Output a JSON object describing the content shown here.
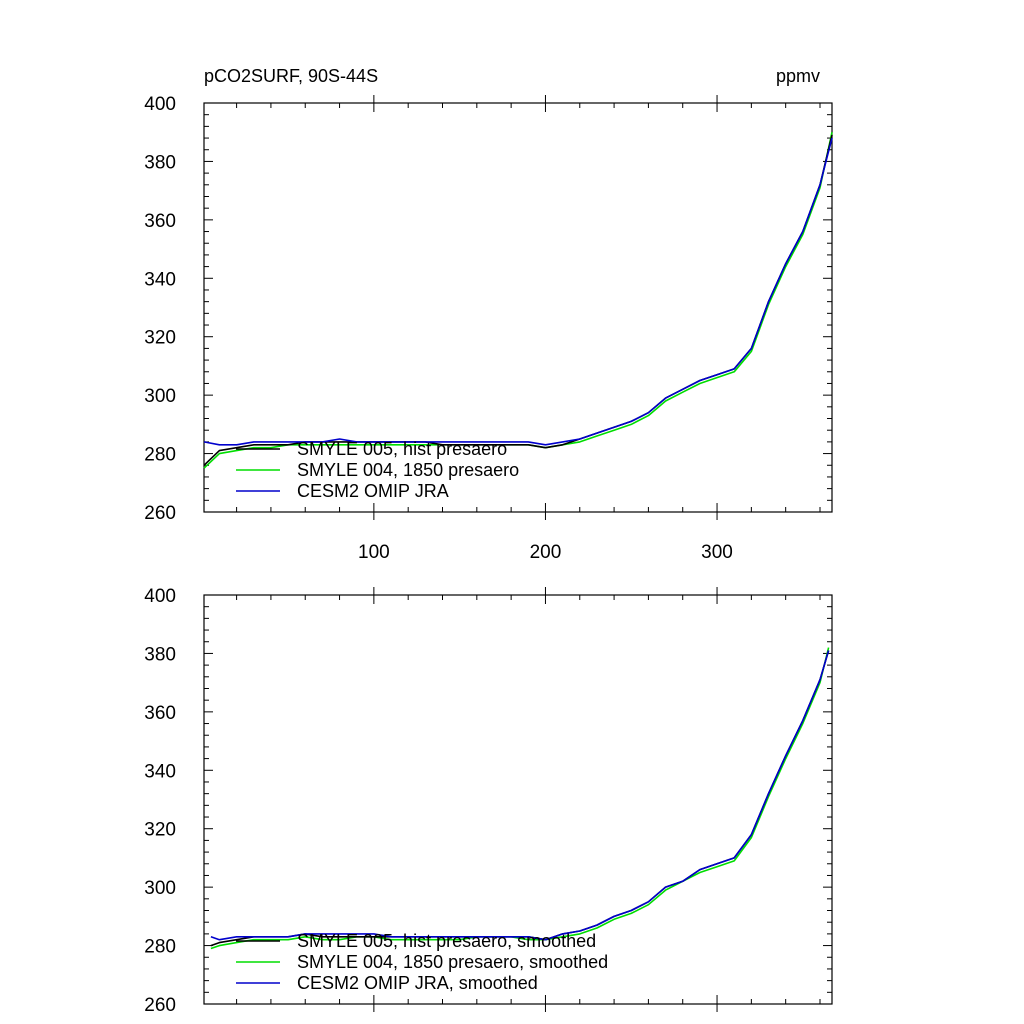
{
  "figure": {
    "title_left": "pCO2SURF, 90S-44S",
    "title_right": "ppmv"
  },
  "colors": {
    "black": "#000000",
    "green": "#00dd00",
    "blue": "#0000cc"
  },
  "chart_data": [
    {
      "type": "line",
      "title": "pCO2SURF, 90S-44S",
      "units": "ppmv",
      "xlim": [
        1,
        367
      ],
      "ylim": [
        260,
        400
      ],
      "x_ticks": [
        100,
        200,
        300
      ],
      "x_tick_labels": [
        "100",
        "200",
        "300"
      ],
      "y_ticks": [
        260,
        280,
        300,
        320,
        340,
        360,
        380,
        400
      ],
      "y_tick_labels": [
        "260",
        "280",
        "300",
        "320",
        "340",
        "360",
        "380",
        "400"
      ],
      "legend_position": "bottom-left",
      "x": [
        1,
        10,
        20,
        30,
        40,
        50,
        60,
        70,
        80,
        90,
        100,
        110,
        120,
        130,
        140,
        150,
        160,
        170,
        180,
        190,
        200,
        210,
        220,
        230,
        240,
        250,
        260,
        270,
        280,
        290,
        300,
        310,
        320,
        330,
        340,
        350,
        360,
        367
      ],
      "series": [
        {
          "name": "SMYLE 005, hist presaero",
          "color_key": "black",
          "values": [
            276,
            281,
            282,
            283,
            283,
            283,
            284,
            284,
            284,
            284,
            284,
            284,
            284,
            284,
            283,
            283,
            283,
            283,
            283,
            283,
            282,
            283,
            285,
            287,
            289,
            291,
            294,
            299,
            302,
            305,
            307,
            309,
            316,
            332,
            345,
            356,
            372,
            389
          ]
        },
        {
          "name": "SMYLE 004, 1850 presaero",
          "color_key": "green",
          "values": [
            275,
            280,
            281,
            282,
            282,
            283,
            283,
            283,
            283,
            283,
            283,
            283,
            283,
            283,
            283,
            283,
            283,
            283,
            283,
            283,
            282,
            283,
            284,
            286,
            288,
            290,
            293,
            298,
            301,
            304,
            306,
            308,
            315,
            331,
            344,
            355,
            371,
            390
          ]
        },
        {
          "name": "CESM2 OMIP JRA",
          "color_key": "blue",
          "values": [
            284,
            283,
            283,
            284,
            284,
            284,
            284,
            284,
            285,
            284,
            284,
            284,
            284,
            284,
            284,
            284,
            284,
            284,
            284,
            284,
            283,
            284,
            285,
            287,
            289,
            291,
            294,
            299,
            302,
            305,
            307,
            309,
            316,
            332,
            345,
            356,
            372,
            388
          ]
        }
      ]
    },
    {
      "type": "line",
      "title": "",
      "xlim": [
        1,
        367
      ],
      "ylim": [
        260,
        400
      ],
      "x_ticks": [
        100,
        200,
        300
      ],
      "x_tick_labels": [],
      "y_ticks": [
        260,
        280,
        300,
        320,
        340,
        360,
        380,
        400
      ],
      "y_tick_labels": [
        "260",
        "280",
        "300",
        "320",
        "340",
        "360",
        "380",
        "400"
      ],
      "legend_position": "bottom-left",
      "x": [
        5,
        10,
        20,
        30,
        40,
        50,
        60,
        70,
        80,
        90,
        100,
        110,
        120,
        130,
        140,
        150,
        160,
        170,
        180,
        190,
        200,
        210,
        220,
        230,
        240,
        250,
        260,
        270,
        280,
        290,
        300,
        310,
        320,
        330,
        340,
        350,
        360,
        365
      ],
      "series": [
        {
          "name": "SMYLE 005, hist presaero, smoothed",
          "color_key": "black",
          "values": [
            280,
            281,
            282,
            283,
            283,
            283,
            284,
            283,
            283,
            283,
            283,
            283,
            283,
            283,
            283,
            283,
            283,
            283,
            283,
            283,
            282,
            284,
            285,
            287,
            290,
            292,
            295,
            300,
            302,
            306,
            308,
            310,
            318,
            332,
            345,
            357,
            371,
            381
          ]
        },
        {
          "name": "SMYLE 004, 1850 presaero, smoothed",
          "color_key": "green",
          "values": [
            279,
            280,
            281,
            282,
            282,
            282,
            283,
            282,
            282,
            283,
            283,
            282,
            282,
            282,
            282,
            282,
            283,
            283,
            283,
            282,
            282,
            283,
            284,
            286,
            289,
            291,
            294,
            299,
            302,
            305,
            307,
            309,
            317,
            331,
            344,
            356,
            370,
            382
          ]
        },
        {
          "name": "CESM2 OMIP JRA, smoothed",
          "color_key": "blue",
          "values": [
            283,
            282,
            283,
            283,
            283,
            283,
            284,
            284,
            284,
            284,
            284,
            283,
            283,
            283,
            283,
            283,
            283,
            283,
            283,
            283,
            282,
            284,
            285,
            287,
            290,
            292,
            295,
            300,
            302,
            306,
            308,
            310,
            318,
            332,
            345,
            357,
            371,
            381
          ]
        }
      ]
    }
  ]
}
